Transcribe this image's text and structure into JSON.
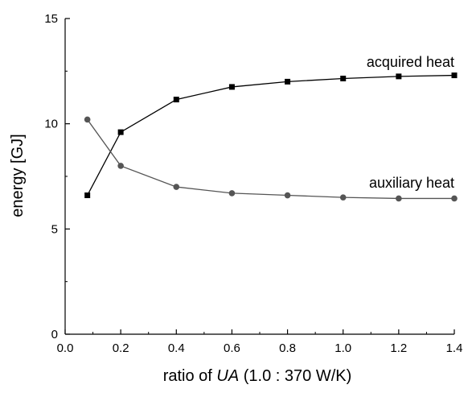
{
  "chart_data": {
    "type": "line",
    "title": "",
    "xlabel_parts": [
      "ratio of ",
      "UA",
      " (1.0 : 370 W/K)"
    ],
    "ylabel": "energy [GJ]",
    "xlim": [
      0.0,
      1.4
    ],
    "ylim": [
      0,
      15
    ],
    "xticks": [
      "0.0",
      "0.2",
      "0.4",
      "0.6",
      "0.8",
      "1.0",
      "1.2",
      "1.4"
    ],
    "yticks": [
      "0",
      "5",
      "10",
      "15"
    ],
    "grid": false,
    "legend": "none",
    "series": [
      {
        "name": "acquired heat",
        "marker": "square",
        "color": "#000000",
        "x": [
          0.08,
          0.2,
          0.4,
          0.6,
          0.8,
          1.0,
          1.2,
          1.4
        ],
        "values": [
          6.6,
          9.6,
          11.15,
          11.75,
          12.0,
          12.15,
          12.25,
          12.3
        ]
      },
      {
        "name": "auxiliary heat",
        "marker": "circle",
        "color": "#555555",
        "x": [
          0.08,
          0.2,
          0.4,
          0.6,
          0.8,
          1.0,
          1.2,
          1.4
        ],
        "values": [
          10.2,
          8.0,
          7.0,
          6.7,
          6.6,
          6.5,
          6.45,
          6.45
        ]
      }
    ]
  }
}
